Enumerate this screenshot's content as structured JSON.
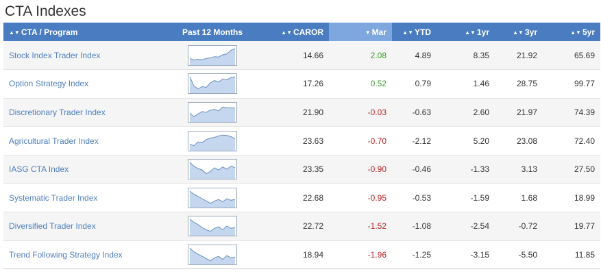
{
  "title": "CTA Indexes",
  "columns": [
    {
      "label": "CTA / Program",
      "arrow": "▲▼",
      "name": "col-header-program"
    },
    {
      "label": "Past 12 Months",
      "arrow": "",
      "name": "col-header-past-12-months"
    },
    {
      "label": "CAROR",
      "arrow": "▲▼",
      "name": "col-header-caror"
    },
    {
      "label": "Mar",
      "arrow": "▼",
      "name": "col-header-mar"
    },
    {
      "label": "YTD",
      "arrow": "▲▼",
      "name": "col-header-ytd"
    },
    {
      "label": "1yr",
      "arrow": "▲▼",
      "name": "col-header-1yr"
    },
    {
      "label": "3yr",
      "arrow": "▲▼",
      "name": "col-header-3yr"
    },
    {
      "label": "5yr",
      "arrow": "▲▼",
      "name": "col-header-5yr"
    }
  ],
  "rows": [
    {
      "name": "Stock Index Trader Index",
      "caror": "14.66",
      "mar": "2.08",
      "ytd": "4.89",
      "y1": "8.35",
      "y3": "21.92",
      "y5": "65.69",
      "spark": [
        0.3,
        0.2,
        0.25,
        0.22,
        0.3,
        0.35,
        0.42,
        0.4,
        0.55,
        0.6,
        0.85,
        0.95
      ]
    },
    {
      "name": "Option Strategy Index",
      "caror": "17.26",
      "mar": "0.52",
      "ytd": "0.79",
      "y1": "1.46",
      "y3": "28.75",
      "y5": "99.77",
      "spark": [
        0.95,
        0.35,
        0.15,
        0.3,
        0.25,
        0.55,
        0.7,
        0.6,
        0.8,
        0.75,
        0.9,
        0.95
      ]
    },
    {
      "name": "Discretionary Trader Index",
      "caror": "21.90",
      "mar": "-0.03",
      "ytd": "-0.63",
      "y1": "2.60",
      "y3": "21.97",
      "y5": "74.39",
      "spark": [
        0.45,
        0.2,
        0.4,
        0.55,
        0.5,
        0.65,
        0.7,
        0.6,
        0.85,
        0.8,
        0.8,
        0.78
      ]
    },
    {
      "name": "Agricultural Trader Index",
      "caror": "23.63",
      "mar": "-0.70",
      "ytd": "-2.12",
      "y1": "5.20",
      "y3": "23.08",
      "y5": "72.40",
      "spark": [
        0.3,
        0.2,
        0.45,
        0.4,
        0.6,
        0.7,
        0.75,
        0.85,
        0.9,
        0.88,
        0.8,
        0.65
      ]
    },
    {
      "name": "IASG CTA Index",
      "caror": "23.35",
      "mar": "-0.90",
      "ytd": "-0.46",
      "y1": "-1.33",
      "y3": "3.13",
      "y5": "27.50",
      "spark": [
        0.95,
        0.7,
        0.55,
        0.45,
        0.2,
        0.35,
        0.6,
        0.45,
        0.65,
        0.5,
        0.7,
        0.6
      ]
    },
    {
      "name": "Systematic Trader Index",
      "caror": "22.68",
      "mar": "-0.95",
      "ytd": "-0.53",
      "y1": "-1.59",
      "y3": "1.68",
      "y5": "18.99",
      "spark": [
        0.95,
        0.75,
        0.6,
        0.45,
        0.3,
        0.15,
        0.3,
        0.4,
        0.25,
        0.45,
        0.35,
        0.4
      ]
    },
    {
      "name": "Diversified Trader Index",
      "caror": "22.72",
      "mar": "-1.52",
      "ytd": "-1.08",
      "y1": "-2.54",
      "y3": "-0.72",
      "y5": "19.77",
      "spark": [
        0.95,
        0.75,
        0.6,
        0.4,
        0.25,
        0.15,
        0.35,
        0.45,
        0.25,
        0.5,
        0.35,
        0.4
      ]
    },
    {
      "name": "Trend Following Strategy Index",
      "caror": "18.94",
      "mar": "-1.96",
      "ytd": "-1.25",
      "y1": "-3.15",
      "y3": "-5.50",
      "y5": "11.85",
      "spark": [
        0.95,
        0.7,
        0.55,
        0.4,
        0.25,
        0.1,
        0.3,
        0.4,
        0.2,
        0.45,
        0.3,
        0.35
      ]
    }
  ],
  "colors": {
    "header": "#4a7cc1",
    "header_sorted": "#7ea7e0",
    "link": "#4f7fbf",
    "positive": "#3a9a2a",
    "negative": "#c32424",
    "spark_fill": "#c5d7ee",
    "spark_line": "#6c8fbf"
  },
  "icons": {
    "sort_both": "sort-arrows-icon",
    "sort_desc": "sort-desc-icon"
  }
}
